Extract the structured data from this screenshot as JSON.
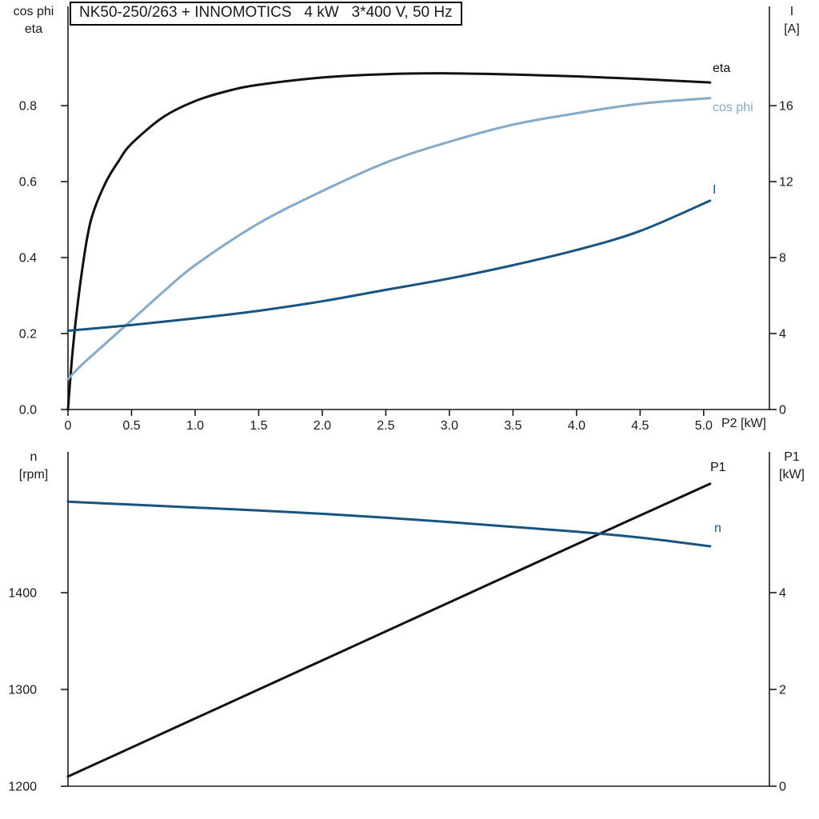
{
  "chart_data": [
    {
      "id": "motor-electrical",
      "type": "line",
      "title": "NK50-250/263 + INNOMOTICS   4 kW   3*400 V, 50 Hz",
      "grid": false,
      "x_axis": {
        "label": "P2 [kW]",
        "min": 0,
        "max": 5.517,
        "ticks": [
          0,
          0.5,
          1,
          1.5,
          2,
          2.5,
          3,
          3.5,
          4,
          4.5,
          5
        ],
        "tick_labels": [
          "0",
          "0.5",
          "1.0",
          "1.5",
          "2.0",
          "2.5",
          "3.0",
          "3.5",
          "4.0",
          "4.5",
          "5.0"
        ]
      },
      "left_axis": {
        "title_lines": [
          "cos phi",
          "eta"
        ],
        "min": 0,
        "max": 1.0613,
        "ticks": [
          0,
          0.2,
          0.4,
          0.6,
          0.8
        ],
        "tick_labels": [
          "0.0",
          "0.2",
          "0.4",
          "0.6",
          "0.8"
        ]
      },
      "right_axis": {
        "title_lines": [
          "I",
          "[A]"
        ],
        "min": 0,
        "max": 21.23,
        "ticks": [
          0,
          4,
          8,
          12,
          16
        ],
        "tick_labels": [
          "0",
          "4",
          "8",
          "12",
          "16"
        ]
      },
      "series": [
        {
          "name": "eta",
          "label": "eta",
          "axis": "left",
          "color": "#111111",
          "x": [
            0,
            0.03,
            0.06,
            0.1,
            0.15,
            0.2,
            0.3,
            0.4,
            0.5,
            0.75,
            1.0,
            1.25,
            1.5,
            2.0,
            2.5,
            3.0,
            3.5,
            4.0,
            4.5,
            5.05
          ],
          "y": [
            0,
            0.13,
            0.23,
            0.34,
            0.45,
            0.52,
            0.6,
            0.655,
            0.7,
            0.77,
            0.812,
            0.838,
            0.855,
            0.874,
            0.883,
            0.885,
            0.882,
            0.877,
            0.87,
            0.861
          ]
        },
        {
          "name": "cos-phi",
          "label": "cos phi",
          "axis": "left",
          "color": "#85aac8",
          "x": [
            0,
            0.1,
            0.25,
            0.5,
            0.75,
            1.0,
            1.5,
            2.0,
            2.5,
            3.0,
            3.5,
            4.0,
            4.5,
            5.05
          ],
          "y": [
            0.08,
            0.115,
            0.16,
            0.235,
            0.31,
            0.38,
            0.49,
            0.575,
            0.65,
            0.705,
            0.75,
            0.78,
            0.805,
            0.82
          ]
        },
        {
          "name": "current",
          "label": "I",
          "axis": "right",
          "color": "#185480",
          "x": [
            0,
            0.5,
            1.0,
            1.5,
            2.0,
            2.5,
            3.0,
            3.5,
            4.0,
            4.5,
            5.05
          ],
          "y": [
            4.15,
            4.45,
            4.8,
            5.2,
            5.7,
            6.3,
            6.9,
            7.6,
            8.4,
            9.4,
            11.0
          ]
        }
      ]
    },
    {
      "id": "speed-power",
      "type": "line",
      "title": "",
      "grid": false,
      "x_axis": {
        "label": "",
        "min": 0,
        "max": 5.517,
        "ticks": [],
        "tick_labels": []
      },
      "left_axis": {
        "title_lines": [
          "n",
          "[rpm]"
        ],
        "min": 1200,
        "max": 1545.5,
        "ticks": [
          1200,
          1300,
          1400
        ],
        "tick_labels": [
          "1200",
          "1300",
          "1400"
        ]
      },
      "right_axis": {
        "title_lines": [
          "P1",
          "[kW]"
        ],
        "min": 0,
        "max": 6.909,
        "ticks": [
          0,
          2,
          4
        ],
        "tick_labels": [
          "0",
          "2",
          "4"
        ]
      },
      "series": [
        {
          "name": "p1",
          "label": "P1",
          "axis": "right",
          "color": "#111111",
          "x": [
            0,
            1.0,
            2.0,
            3.0,
            4.0,
            5.05
          ],
          "y": [
            0.2,
            1.4,
            2.6,
            3.8,
            5.0,
            6.25
          ]
        },
        {
          "name": "n",
          "label": "n",
          "axis": "left",
          "color": "#185480",
          "x": [
            0,
            0.5,
            1.0,
            1.5,
            2.0,
            2.5,
            3.0,
            3.5,
            4.0,
            4.5,
            5.05
          ],
          "y": [
            1494,
            1491,
            1488,
            1485,
            1481.5,
            1477.5,
            1473,
            1468,
            1463,
            1457,
            1448
          ]
        }
      ]
    }
  ]
}
